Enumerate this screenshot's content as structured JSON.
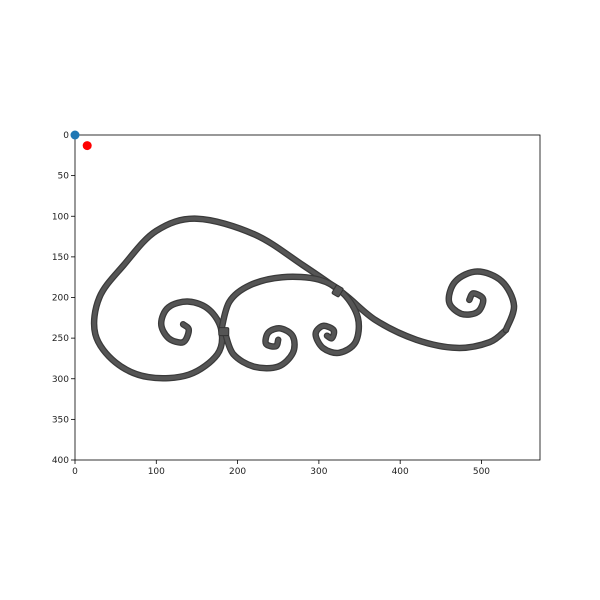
{
  "chart_data": {
    "type": "scatter",
    "title": "",
    "xlabel": "",
    "ylabel": "",
    "xlim": [
      0,
      572
    ],
    "ylim": [
      400,
      0
    ],
    "y_inverted": true,
    "grid": false,
    "legend": "none",
    "x_ticks": [
      "0",
      "100",
      "200",
      "300",
      "400",
      "500"
    ],
    "x_tick_values": [
      0,
      100,
      200,
      300,
      400,
      500
    ],
    "y_ticks": [
      "0",
      "50",
      "100",
      "150",
      "200",
      "250",
      "300",
      "350",
      "400"
    ],
    "y_tick_values": [
      0,
      50,
      100,
      150,
      200,
      250,
      300,
      350,
      400
    ],
    "series": [
      {
        "color": "#1f77b4",
        "points": [
          {
            "x": 0,
            "y": 0
          }
        ]
      },
      {
        "color": "#ff0000",
        "points": [
          {
            "x": 15,
            "y": 13
          }
        ]
      }
    ],
    "background_image": {
      "subject": "wrought-iron-scroll",
      "stroke_color": "#555555"
    }
  }
}
